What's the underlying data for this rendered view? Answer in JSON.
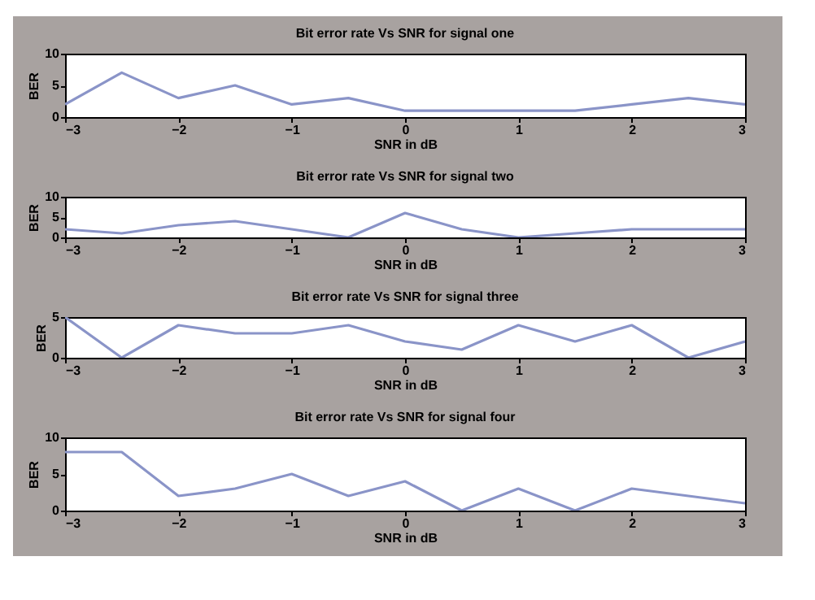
{
  "chart_data": [
    {
      "type": "line",
      "title": "Bit error rate Vs SNR for signal one",
      "xlabel": "SNR in dB",
      "ylabel": "BER",
      "x": [
        -3,
        -2.5,
        -2,
        -1.5,
        -1,
        -0.5,
        0,
        0.5,
        1,
        1.5,
        2,
        2.5,
        3
      ],
      "values": [
        2,
        7,
        3,
        5,
        2,
        3,
        1,
        1,
        1,
        1,
        2,
        3,
        2
      ],
      "color": "#8a94c8",
      "line_style": "solid",
      "xlim": [
        -3,
        3
      ],
      "xticks": [
        -3,
        -2,
        -1,
        0,
        1,
        2,
        3
      ],
      "ylim": [
        0,
        10
      ],
      "yticks": [
        0,
        5,
        10
      ],
      "grid": false,
      "marker": "none"
    },
    {
      "type": "line",
      "title": "Bit error rate Vs SNR for signal two",
      "xlabel": "SNR in dB",
      "ylabel": "BER",
      "x": [
        -3,
        -2.5,
        -2,
        -1.5,
        -1,
        -0.5,
        0,
        0.5,
        1,
        1.5,
        2,
        2.5,
        3
      ],
      "values": [
        2,
        1,
        3,
        4,
        2,
        0,
        6,
        2,
        0,
        1,
        2,
        2,
        2
      ],
      "color": "#8a94c8",
      "line_style": "solid",
      "xlim": [
        -3,
        3
      ],
      "xticks": [
        -3,
        -2,
        -1,
        0,
        1,
        2,
        3
      ],
      "ylim": [
        0,
        10
      ],
      "yticks": [
        0,
        5,
        10
      ],
      "grid": false,
      "marker": "none"
    },
    {
      "type": "line",
      "title": "Bit error rate Vs SNR for signal three",
      "xlabel": "SNR in dB",
      "ylabel": "BER",
      "x": [
        -3,
        -2.5,
        -2,
        -1.5,
        -1,
        -0.5,
        0,
        0.5,
        1,
        1.5,
        2,
        2.5,
        3
      ],
      "values": [
        5,
        0,
        4,
        3,
        3,
        4,
        2,
        1,
        4,
        2,
        4,
        0,
        2
      ],
      "color": "#8a94c8",
      "line_style": "solid",
      "xlim": [
        -3,
        3
      ],
      "xticks": [
        -3,
        -2,
        -1,
        0,
        1,
        2,
        3
      ],
      "ylim": [
        0,
        5
      ],
      "yticks": [
        0,
        5
      ],
      "grid": false,
      "marker": "none"
    },
    {
      "type": "line",
      "title": "Bit error rate Vs SNR for signal four",
      "xlabel": "SNR in dB",
      "ylabel": "BER",
      "x": [
        -3,
        -2.5,
        -2,
        -1.5,
        -1,
        -0.5,
        0,
        0.5,
        1,
        1.5,
        2,
        2.5,
        3
      ],
      "values": [
        8,
        8,
        2,
        3,
        5,
        2,
        4,
        0,
        3,
        0,
        3,
        2,
        1
      ],
      "color": "#8a94c8",
      "line_style": "solid",
      "xlim": [
        -3,
        3
      ],
      "xticks": [
        -3,
        -2,
        -1,
        0,
        1,
        2,
        3
      ],
      "ylim": [
        0,
        10
      ],
      "yticks": [
        0,
        5,
        10
      ],
      "grid": false,
      "marker": "none"
    }
  ]
}
